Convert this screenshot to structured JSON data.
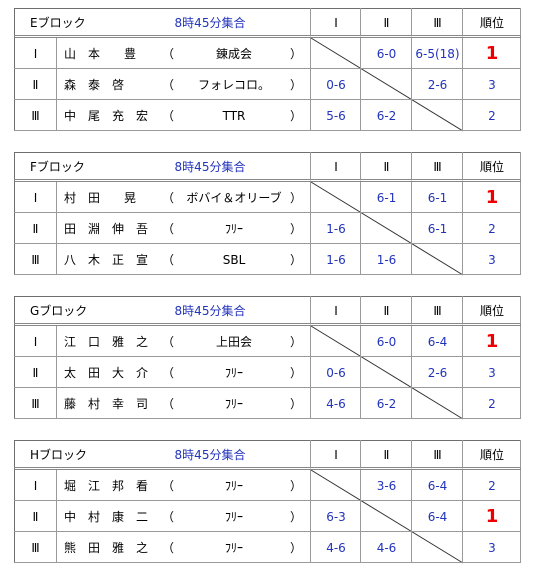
{
  "paren": [
    "（",
    "）"
  ],
  "columns": [
    "Ⅰ",
    "Ⅱ",
    "Ⅲ",
    "順位"
  ],
  "blocks": [
    {
      "name": "Eブロック",
      "time": "8時45分集合",
      "rows": [
        {
          "name": "山　本　　豊",
          "team": "錬成会",
          "scores": [
            null,
            "6-0",
            "6-5(18)"
          ],
          "rank": 1
        },
        {
          "name": "森　泰　啓",
          "team": "フォレコロ。",
          "scores": [
            "0-6",
            null,
            "2-6"
          ],
          "rank": 3
        },
        {
          "name": "中　尾　充　宏",
          "team": "TTR",
          "scores": [
            "5-6",
            "6-2",
            null
          ],
          "rank": 2
        }
      ]
    },
    {
      "name": "Fブロック",
      "time": "8時45分集合",
      "rows": [
        {
          "name": "村　田　　晃",
          "team": "ボバイ＆オリーブ",
          "scores": [
            null,
            "6-1",
            "6-1"
          ],
          "rank": 1
        },
        {
          "name": "田　淵　伸　吾",
          "team": "ﾌﾘｰ",
          "scores": [
            "1-6",
            null,
            "6-1"
          ],
          "rank": 2
        },
        {
          "name": "八　木　正　宣",
          "team": "SBL",
          "scores": [
            "1-6",
            "1-6",
            null
          ],
          "rank": 3
        }
      ]
    },
    {
      "name": "Gブロック",
      "time": "8時45分集合",
      "rows": [
        {
          "name": "江　口　雅　之",
          "team": "上田会",
          "scores": [
            null,
            "6-0",
            "6-4"
          ],
          "rank": 1
        },
        {
          "name": "太　田　大　介",
          "team": "ﾌﾘｰ",
          "scores": [
            "0-6",
            null,
            "2-6"
          ],
          "rank": 3
        },
        {
          "name": "藤　村　幸　司",
          "team": "ﾌﾘｰ",
          "scores": [
            "4-6",
            "6-2",
            null
          ],
          "rank": 2
        }
      ]
    },
    {
      "name": "Hブロック",
      "time": "8時45分集合",
      "rows": [
        {
          "name": "堀　江　邦　看",
          "team": "ﾌﾘｰ",
          "scores": [
            null,
            "3-6",
            "6-4"
          ],
          "rank": 2
        },
        {
          "name": "中　村　康　二",
          "team": "ﾌﾘｰ",
          "scores": [
            "6-3",
            null,
            "6-4"
          ],
          "rank": 1
        },
        {
          "name": "熊　田　雅　之",
          "team": "ﾌﾘｰ",
          "scores": [
            "4-6",
            "4-6",
            null
          ],
          "rank": 3
        }
      ]
    }
  ]
}
